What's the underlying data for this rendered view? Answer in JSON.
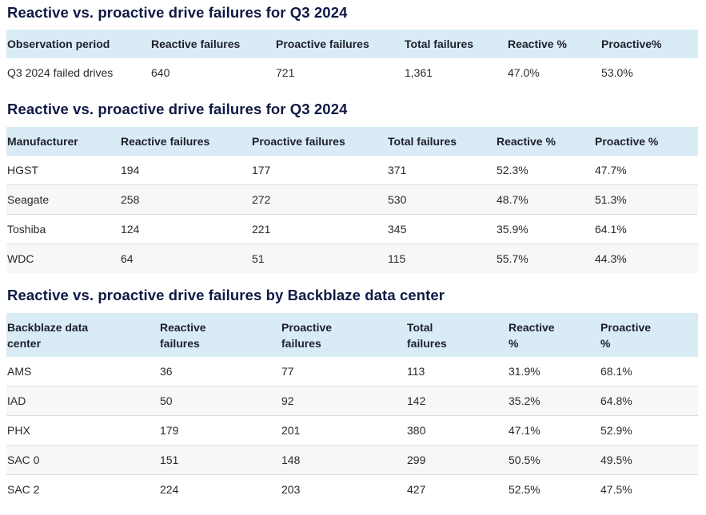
{
  "section1": {
    "title": "Reactive vs. proactive drive failures for Q3 2024",
    "headers": [
      "Observation period",
      "Reactive failures",
      "Proactive failures",
      "Total failures",
      "Reactive %",
      "Proactive%"
    ],
    "rows": [
      [
        "Q3 2024 failed drives",
        "640",
        "721",
        "1,361",
        "47.0%",
        "53.0%"
      ]
    ]
  },
  "section2": {
    "title": "Reactive vs. proactive drive failures for Q3 2024",
    "headers": [
      "Manufacturer",
      "Reactive failures",
      "Proactive failures",
      "Total failures",
      "Reactive %",
      "Proactive %"
    ],
    "rows": [
      [
        "HGST",
        "194",
        "177",
        "371",
        "52.3%",
        "47.7%"
      ],
      [
        "Seagate",
        "258",
        "272",
        "530",
        "48.7%",
        "51.3%"
      ],
      [
        "Toshiba",
        "124",
        "221",
        "345",
        "35.9%",
        "64.1%"
      ],
      [
        "WDC",
        "64",
        "51",
        "115",
        "55.7%",
        "44.3%"
      ]
    ]
  },
  "section3": {
    "title": "Reactive vs. proactive drive failures by Backblaze data center",
    "headers": [
      [
        "Backblaze data",
        "center"
      ],
      [
        "Reactive",
        "failures"
      ],
      [
        "Proactive",
        "failures"
      ],
      [
        "Total",
        "failures"
      ],
      [
        "Reactive",
        "%"
      ],
      [
        "Proactive",
        "%"
      ]
    ],
    "rows": [
      [
        "AMS",
        "36",
        "77",
        "113",
        "31.9%",
        "68.1%"
      ],
      [
        "IAD",
        "50",
        "92",
        "142",
        "35.2%",
        "64.8%"
      ],
      [
        "PHX",
        "179",
        "201",
        "380",
        "47.1%",
        "52.9%"
      ],
      [
        "SAC 0",
        "151",
        "148",
        "299",
        "50.5%",
        "49.5%"
      ],
      [
        "SAC 2",
        "224",
        "203",
        "427",
        "52.5%",
        "47.5%"
      ]
    ]
  }
}
